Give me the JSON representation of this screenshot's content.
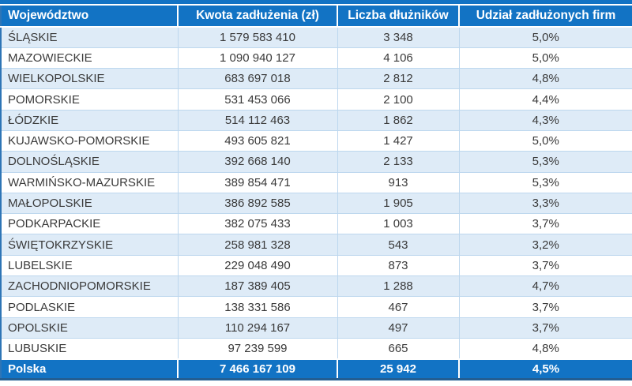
{
  "colors": {
    "header_bg": "#1273c4",
    "footer_bg": "#1273c4",
    "band_bg": "#deebf7",
    "row_bg": "#ffffff",
    "grid": "#bdd7ee",
    "outer_border": "#2e75b6",
    "bottom_line": "#235e92",
    "text": "#3a3a3a",
    "header_text": "#ffffff"
  },
  "chart_data": {
    "type": "table",
    "columns": [
      "Województwo",
      "Kwota zadłużenia (zł)",
      "Liczba dłużników",
      "Udział zadłużonych firm"
    ],
    "rows": [
      {
        "region": "ŚLĄSKIE",
        "amount_zl": "1 579 583 410",
        "debtors": "3 348",
        "share_of_indebted_firms": "5,0%"
      },
      {
        "region": "MAZOWIECKIE",
        "amount_zl": "1 090 940 127",
        "debtors": "4 106",
        "share_of_indebted_firms": "5,0%"
      },
      {
        "region": "WIELKOPOLSKIE",
        "amount_zl": "683 697 018",
        "debtors": "2 812",
        "share_of_indebted_firms": "4,8%"
      },
      {
        "region": "POMORSKIE",
        "amount_zl": "531 453 066",
        "debtors": "2 100",
        "share_of_indebted_firms": "4,4%"
      },
      {
        "region": "ŁÓDZKIE",
        "amount_zl": "514 112 463",
        "debtors": "1 862",
        "share_of_indebted_firms": "4,3%"
      },
      {
        "region": "KUJAWSKO-POMORSKIE",
        "amount_zl": "493 605 821",
        "debtors": "1 427",
        "share_of_indebted_firms": "5,0%"
      },
      {
        "region": "DOLNOŚLĄSKIE",
        "amount_zl": "392 668 140",
        "debtors": "2 133",
        "share_of_indebted_firms": "5,3%"
      },
      {
        "region": "WARMIŃSKO-MAZURSKIE",
        "amount_zl": "389 854 471",
        "debtors": "913",
        "share_of_indebted_firms": "5,3%"
      },
      {
        "region": "MAŁOPOLSKIE",
        "amount_zl": "386 892 585",
        "debtors": "1 905",
        "share_of_indebted_firms": "3,3%"
      },
      {
        "region": "PODKARPACKIE",
        "amount_zl": "382 075 433",
        "debtors": "1 003",
        "share_of_indebted_firms": "3,7%"
      },
      {
        "region": "ŚWIĘTOKRZYSKIE",
        "amount_zl": "258 981 328",
        "debtors": "543",
        "share_of_indebted_firms": "3,2%"
      },
      {
        "region": "LUBELSKIE",
        "amount_zl": "229 048 490",
        "debtors": "873",
        "share_of_indebted_firms": "3,7%"
      },
      {
        "region": "ZACHODNIOPOMORSKIE",
        "amount_zl": "187 389 405",
        "debtors": "1 288",
        "share_of_indebted_firms": "4,7%"
      },
      {
        "region": "PODLASKIE",
        "amount_zl": "138 331 586",
        "debtors": "467",
        "share_of_indebted_firms": "3,7%"
      },
      {
        "region": "OPOLSKIE",
        "amount_zl": "110 294 167",
        "debtors": "497",
        "share_of_indebted_firms": "3,7%"
      },
      {
        "region": "LUBUSKIE",
        "amount_zl": "97 239 599",
        "debtors": "665",
        "share_of_indebted_firms": "4,8%"
      }
    ],
    "footer": {
      "region": "Polska",
      "amount_zl": "7 466 167 109",
      "debtors": "25 942",
      "share_of_indebted_firms": "4,5%"
    },
    "layout": {
      "banding": "odd rows light blue",
      "first_column_align": "left",
      "other_columns_align": "center"
    }
  }
}
